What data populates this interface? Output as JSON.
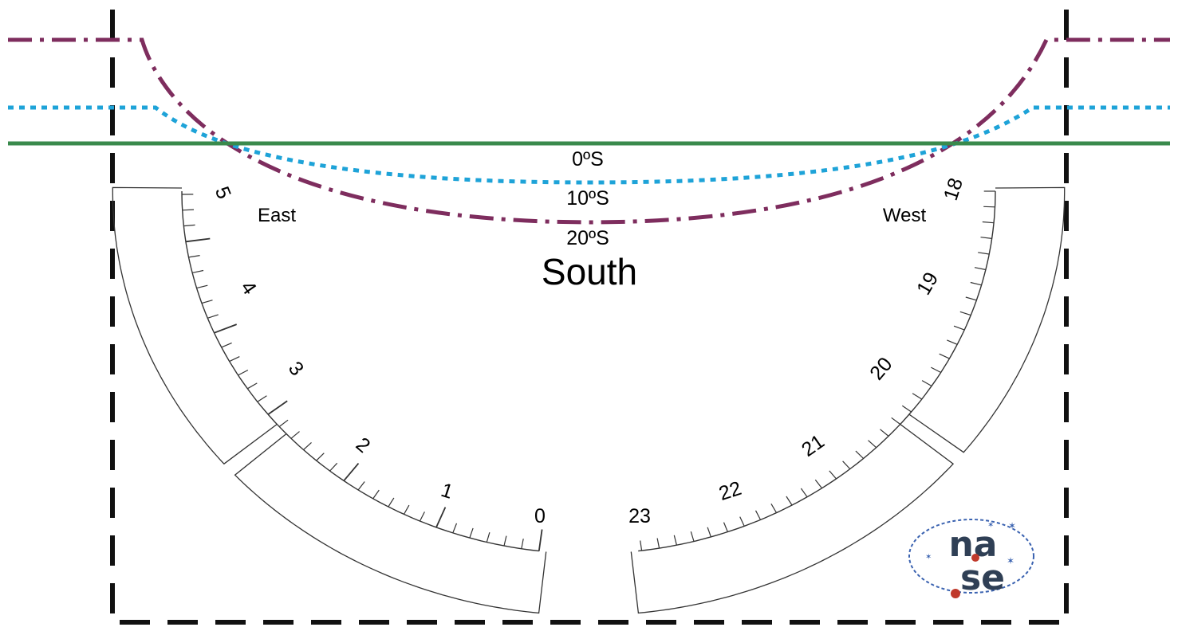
{
  "labels": {
    "lat_0": "0ºS",
    "lat_10": "10ºS",
    "lat_20": "20ºS",
    "south": "South",
    "east": "East",
    "west": "West"
  },
  "hours": {
    "left": [
      "5",
      "4",
      "3",
      "2",
      "1",
      "0"
    ],
    "right": [
      "23",
      "22",
      "21",
      "20",
      "19",
      "18"
    ]
  },
  "logo": {
    "top": "na",
    "bottom": "se"
  },
  "colors": {
    "horizon": "#3a8a4c",
    "lat_10": "#1ea3d8",
    "lat_20": "#7e2d5e",
    "frame": "#111111",
    "scale": "#333333",
    "logo_text": "#2f3f55",
    "logo_ring": "#3a62b0",
    "logo_accent": "#c0392b"
  }
}
